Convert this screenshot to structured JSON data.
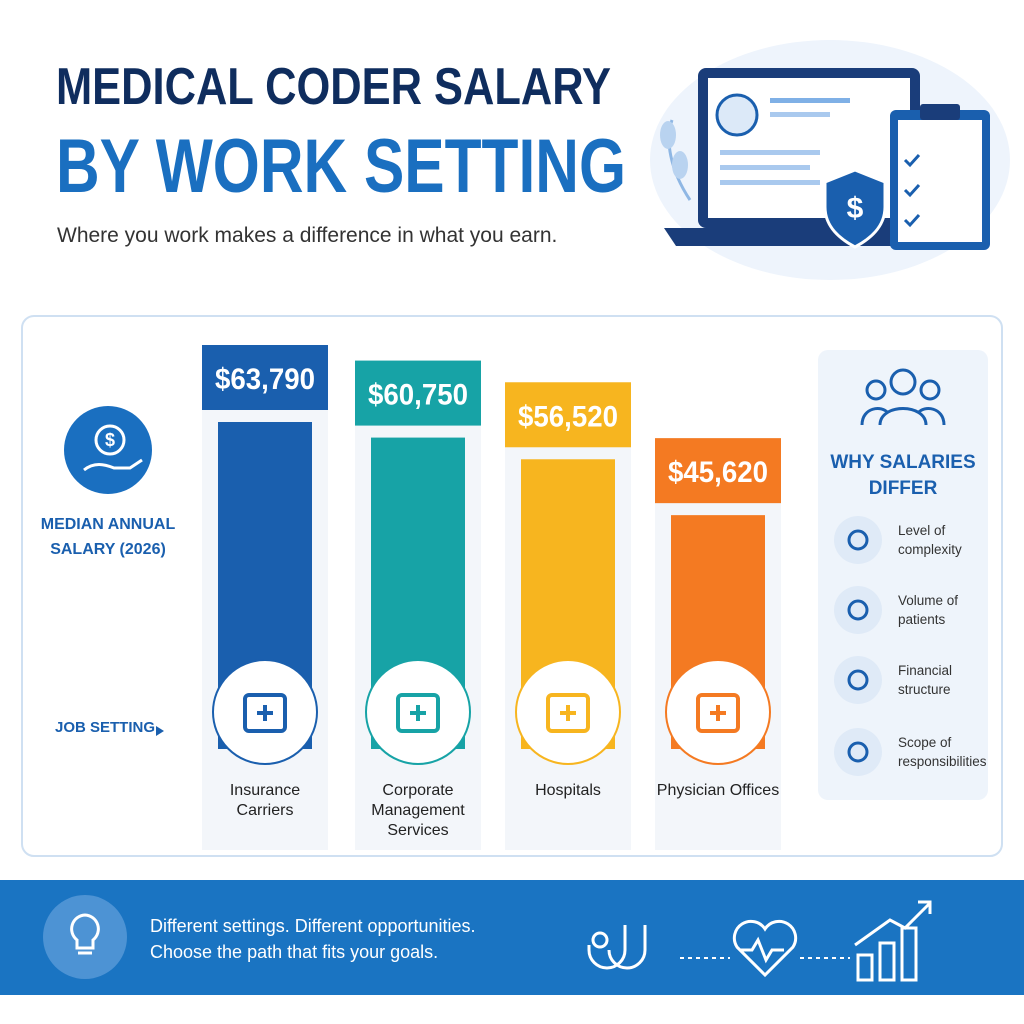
{
  "header": {
    "title_line1": "MEDICAL CODER SALARY",
    "title_line2": "BY WORK SETTING",
    "subtitle": "Where you work makes a difference in what you earn."
  },
  "chart_data": {
    "type": "bar",
    "y_label": "MEDIAN ANNUAL SALARY (2026)",
    "x_label": "JOB SETTING",
    "categories": [
      "Insurance Carriers",
      "Corporate Management Services",
      "Hospitals",
      "Physician Offices"
    ],
    "values": [
      63790,
      60750,
      56520,
      45620
    ],
    "value_labels": [
      "$63,790",
      "$60,750",
      "$56,520",
      "$45,620"
    ],
    "colors": [
      "#1a5fae",
      "#17a3a6",
      "#f7b51f",
      "#f47a22"
    ]
  },
  "sidebar": {
    "title": "WHY SALARIES DIFFER",
    "items": [
      "Level of complexity",
      "Volume of patients",
      "Financial structure",
      "Scope of responsibilities"
    ]
  },
  "footer": {
    "lines": [
      "Different settings. Different opportunities.",
      "Choose the path that fits your goals."
    ]
  }
}
